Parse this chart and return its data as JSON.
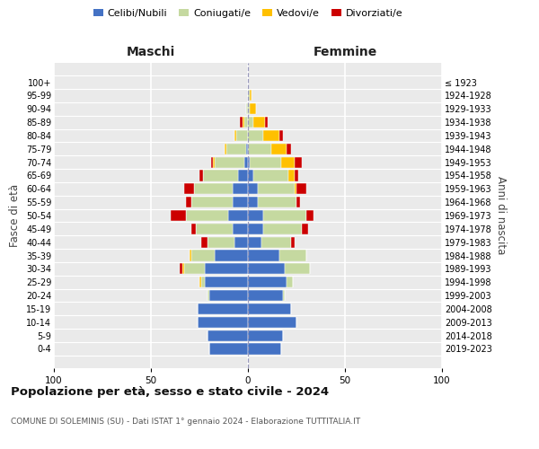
{
  "age_groups": [
    "0-4",
    "5-9",
    "10-14",
    "15-19",
    "20-24",
    "25-29",
    "30-34",
    "35-39",
    "40-44",
    "45-49",
    "50-54",
    "55-59",
    "60-64",
    "65-69",
    "70-74",
    "75-79",
    "80-84",
    "85-89",
    "90-94",
    "95-99",
    "100+"
  ],
  "birth_years": [
    "2019-2023",
    "2014-2018",
    "2009-2013",
    "2004-2008",
    "1999-2003",
    "1994-1998",
    "1989-1993",
    "1984-1988",
    "1979-1983",
    "1974-1978",
    "1969-1973",
    "1964-1968",
    "1959-1963",
    "1954-1958",
    "1949-1953",
    "1944-1948",
    "1939-1943",
    "1934-1938",
    "1929-1933",
    "1924-1928",
    "≤ 1923"
  ],
  "maschi": {
    "celibi": [
      20,
      21,
      26,
      26,
      20,
      22,
      22,
      17,
      7,
      8,
      10,
      8,
      8,
      5,
      2,
      1,
      0,
      0,
      0,
      0,
      0
    ],
    "coniugati": [
      0,
      0,
      0,
      0,
      1,
      2,
      11,
      12,
      14,
      19,
      22,
      21,
      20,
      18,
      15,
      10,
      6,
      2,
      1,
      0,
      0
    ],
    "vedovi": [
      0,
      0,
      0,
      0,
      0,
      1,
      1,
      1,
      0,
      0,
      0,
      0,
      0,
      0,
      1,
      1,
      1,
      1,
      0,
      0,
      0
    ],
    "divorziati": [
      0,
      0,
      0,
      0,
      0,
      0,
      1,
      0,
      3,
      2,
      8,
      3,
      5,
      2,
      1,
      0,
      0,
      1,
      0,
      0,
      0
    ]
  },
  "femmine": {
    "nubili": [
      17,
      18,
      25,
      22,
      18,
      20,
      19,
      16,
      7,
      8,
      8,
      5,
      5,
      3,
      1,
      0,
      0,
      0,
      0,
      0,
      0
    ],
    "coniugate": [
      0,
      0,
      0,
      0,
      1,
      3,
      13,
      14,
      15,
      20,
      22,
      20,
      19,
      18,
      16,
      12,
      8,
      3,
      1,
      1,
      0
    ],
    "vedove": [
      0,
      0,
      0,
      0,
      0,
      0,
      0,
      0,
      0,
      0,
      0,
      0,
      1,
      3,
      7,
      8,
      8,
      6,
      3,
      1,
      0
    ],
    "divorziate": [
      0,
      0,
      0,
      0,
      0,
      0,
      0,
      0,
      2,
      3,
      4,
      2,
      5,
      2,
      4,
      2,
      2,
      1,
      0,
      0,
      0
    ]
  },
  "colors": {
    "celibi": "#4472c4",
    "coniugati": "#c5d9a0",
    "vedovi": "#ffc000",
    "divorziati": "#cc0000"
  },
  "xlim": 100,
  "title": "Popolazione per età, sesso e stato civile - 2024",
  "subtitle": "COMUNE DI SOLEMINIS (SU) - Dati ISTAT 1° gennaio 2024 - Elaborazione TUTTITALIA.IT",
  "ylabel_left": "Fasce di età",
  "ylabel_right": "Anni di nascita",
  "xlabel_maschi": "Maschi",
  "xlabel_femmine": "Femmine",
  "legend_labels": [
    "Celibi/Nubili",
    "Coniugati/e",
    "Vedovi/e",
    "Divorziati/e"
  ],
  "background_color": "#eaeaea"
}
